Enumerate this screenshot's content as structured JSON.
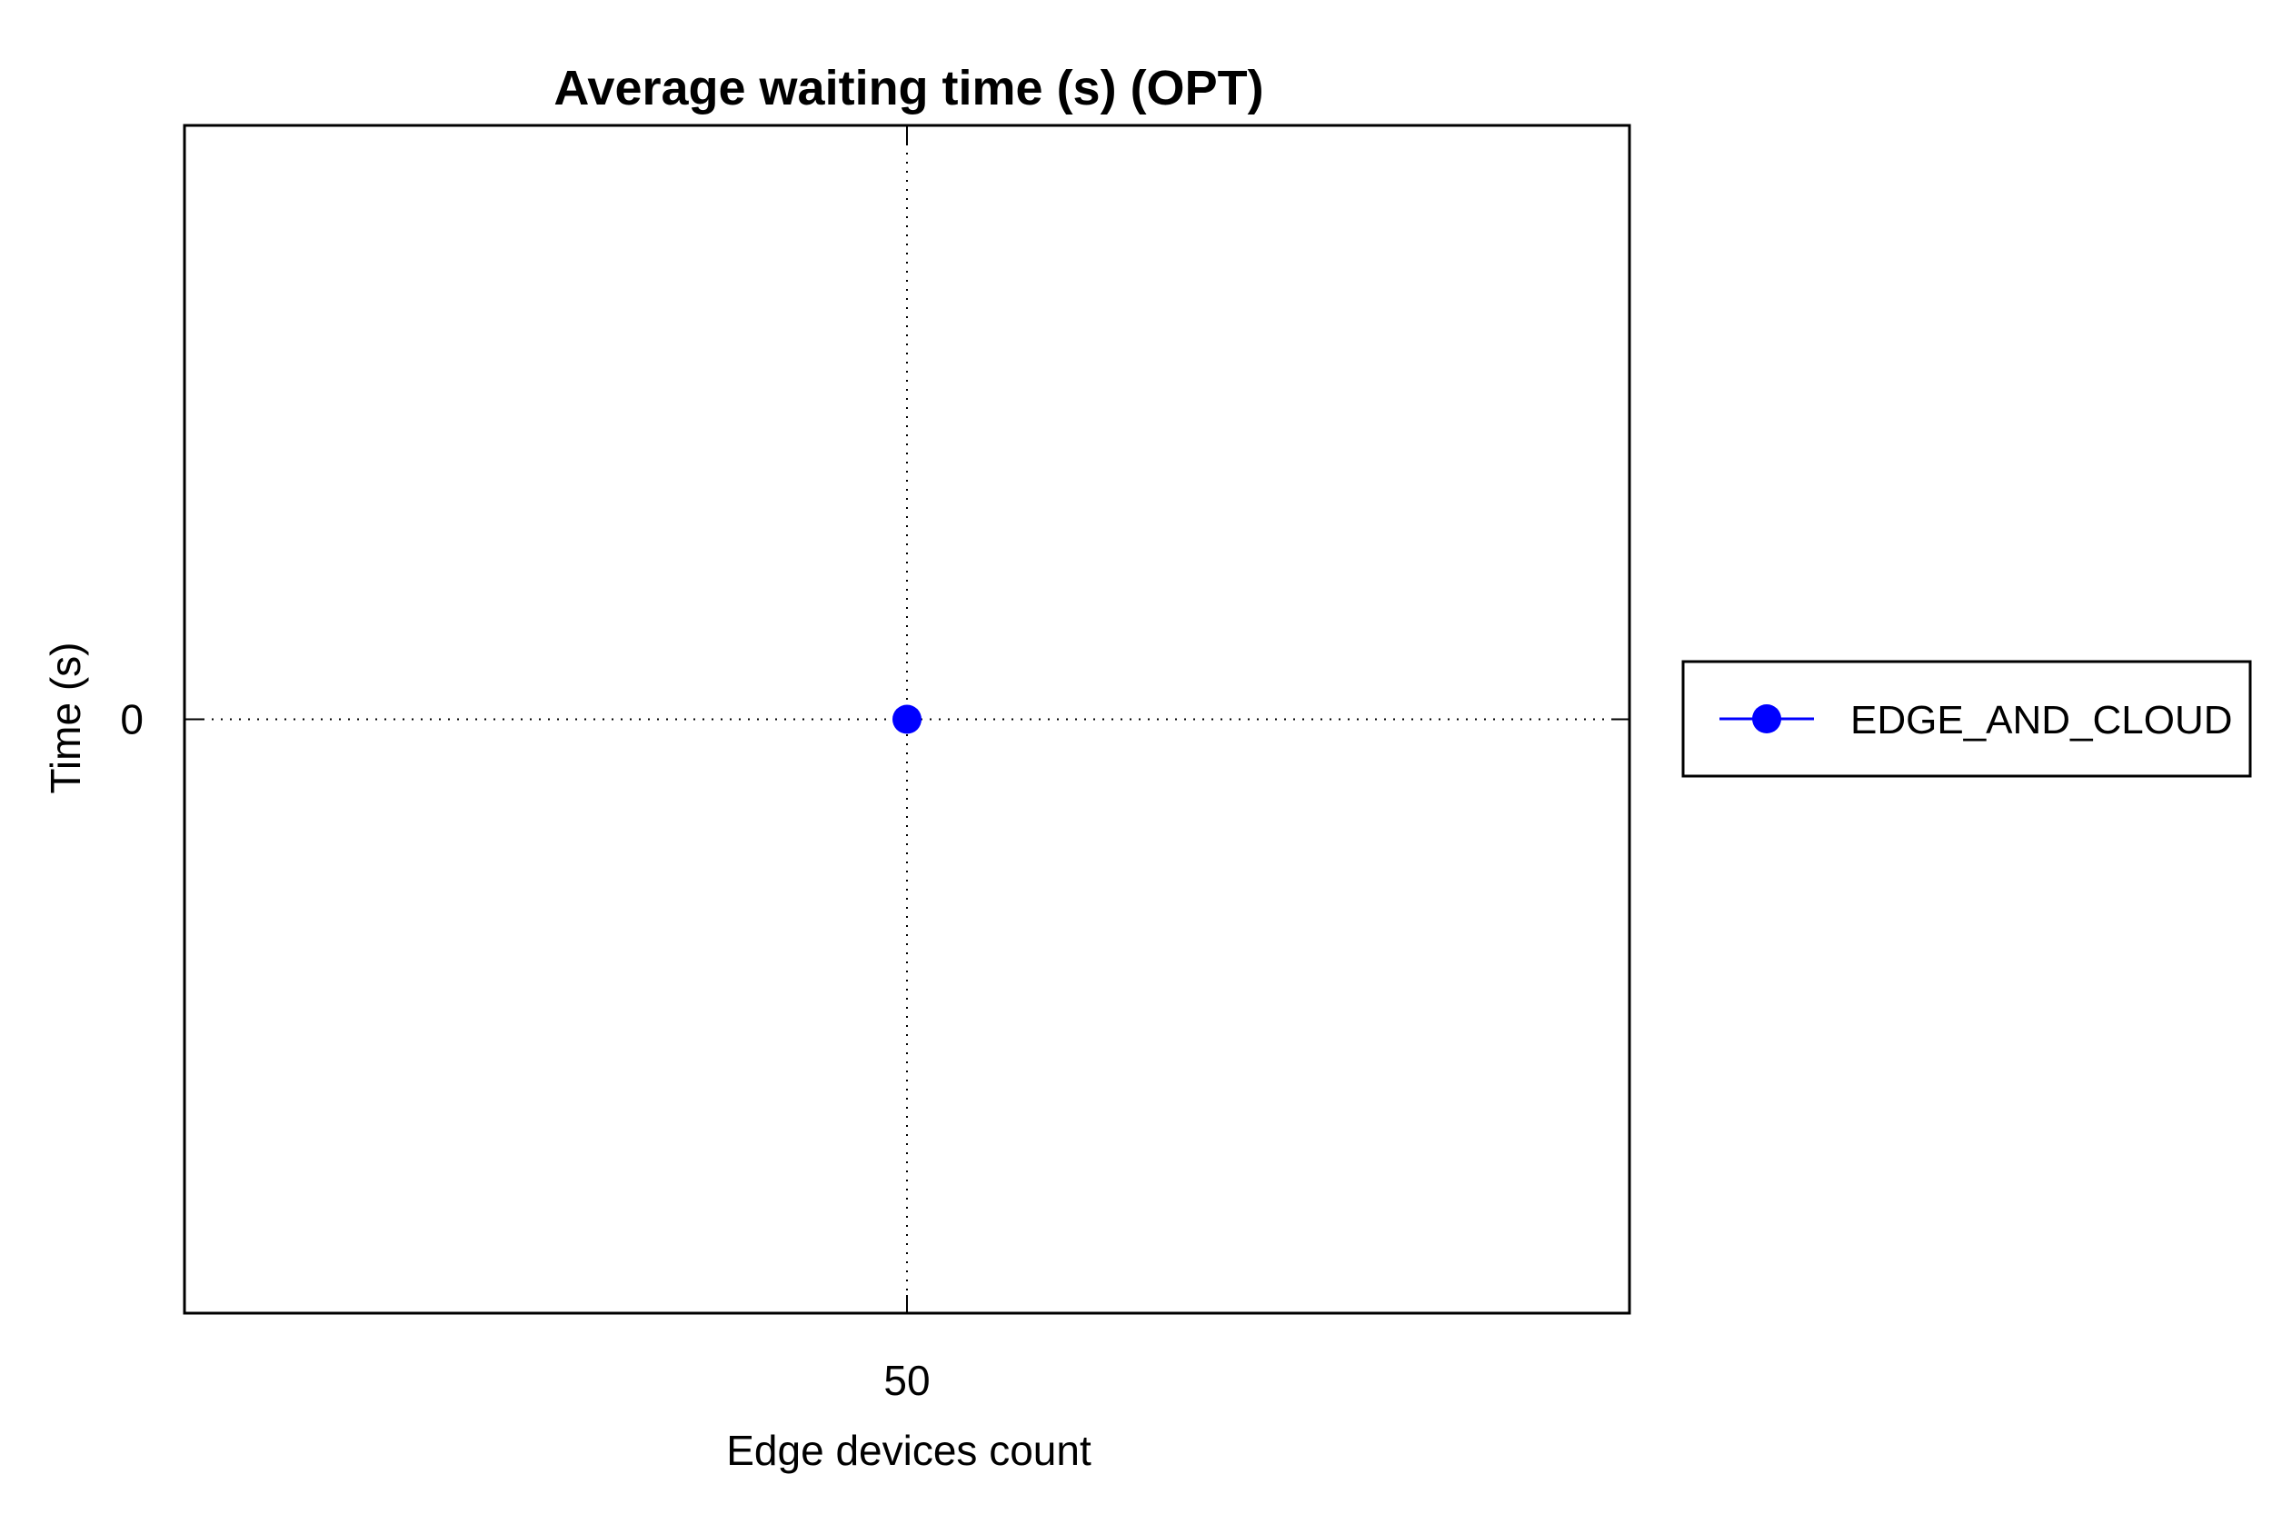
{
  "chart_data": {
    "type": "line",
    "title": "Average waiting time (s) (OPT)",
    "xlabel": "Edge devices count",
    "ylabel": "Time (s)",
    "x": [
      50
    ],
    "x_ticks": [
      "50"
    ],
    "y_ticks": [
      "0"
    ],
    "xlim": [
      49,
      51
    ],
    "ylim": [
      -1,
      1
    ],
    "grid": true,
    "legend_position": "right",
    "series": [
      {
        "name": "EDGE_AND_CLOUD",
        "x": [
          50
        ],
        "values": [
          0
        ],
        "color": "#0000ff",
        "marker": "circle"
      }
    ]
  }
}
